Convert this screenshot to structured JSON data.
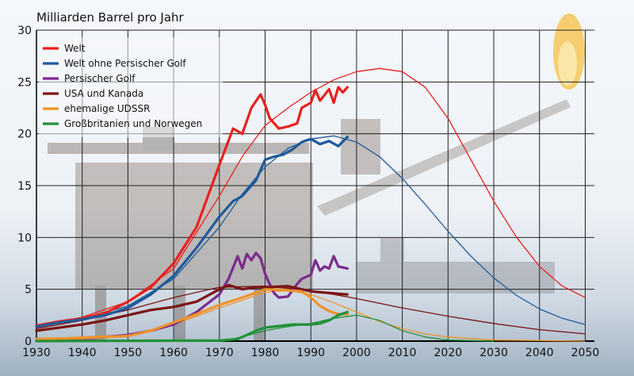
{
  "chart_data": {
    "type": "line",
    "title": "Milliarden Barrel pro Jahr",
    "xlabel": "",
    "ylabel": "",
    "xlim": [
      1930,
      2052
    ],
    "ylim": [
      0,
      30
    ],
    "x_ticks": [
      "1930",
      "1940",
      "1950",
      "1960",
      "1970",
      "1980",
      "1990",
      "2000",
      "2010",
      "2020",
      "2030",
      "2040",
      "2050"
    ],
    "y_ticks": [
      "0",
      "5",
      "10",
      "15",
      "20",
      "25",
      "30"
    ],
    "grid": true,
    "legend_position": "top-left",
    "series": [
      {
        "name": "Welt",
        "color": "#e8201c",
        "actual": [
          [
            1930,
            1.5
          ],
          [
            1935,
            1.9
          ],
          [
            1940,
            2.2
          ],
          [
            1945,
            2.7
          ],
          [
            1950,
            3.8
          ],
          [
            1955,
            5.2
          ],
          [
            1960,
            7.5
          ],
          [
            1965,
            11.0
          ],
          [
            1970,
            17.0
          ],
          [
            1973,
            20.5
          ],
          [
            1975,
            20.0
          ],
          [
            1977,
            22.5
          ],
          [
            1979,
            23.8
          ],
          [
            1980,
            22.8
          ],
          [
            1981,
            21.5
          ],
          [
            1983,
            20.5
          ],
          [
            1985,
            20.7
          ],
          [
            1987,
            21.0
          ],
          [
            1988,
            22.5
          ],
          [
            1990,
            23.0
          ],
          [
            1991,
            24.2
          ],
          [
            1992,
            23.2
          ],
          [
            1994,
            24.3
          ],
          [
            1995,
            23.0
          ],
          [
            1996,
            24.5
          ],
          [
            1997,
            24.0
          ],
          [
            1998,
            24.5
          ]
        ],
        "model": [
          [
            1930,
            1.4
          ],
          [
            1940,
            2.3
          ],
          [
            1950,
            3.8
          ],
          [
            1960,
            7.0
          ],
          [
            1970,
            14.0
          ],
          [
            1975,
            17.8
          ],
          [
            1980,
            20.8
          ],
          [
            1985,
            22.5
          ],
          [
            1990,
            24.0
          ],
          [
            1995,
            25.2
          ],
          [
            2000,
            26.0
          ],
          [
            2005,
            26.3
          ],
          [
            2010,
            26.0
          ],
          [
            2015,
            24.5
          ],
          [
            2020,
            21.5
          ],
          [
            2025,
            17.5
          ],
          [
            2030,
            13.5
          ],
          [
            2035,
            10.0
          ],
          [
            2040,
            7.2
          ],
          [
            2045,
            5.3
          ],
          [
            2050,
            4.2
          ]
        ]
      },
      {
        "name": "Welt ohne Persischer Golf",
        "color": "#1f5a9a",
        "actual": [
          [
            1930,
            1.4
          ],
          [
            1935,
            1.8
          ],
          [
            1940,
            2.1
          ],
          [
            1945,
            2.5
          ],
          [
            1950,
            3.2
          ],
          [
            1955,
            4.5
          ],
          [
            1960,
            6.3
          ],
          [
            1965,
            9.0
          ],
          [
            1970,
            12.0
          ],
          [
            1973,
            13.5
          ],
          [
            1975,
            14.0
          ],
          [
            1978,
            15.5
          ],
          [
            1980,
            17.5
          ],
          [
            1982,
            17.8
          ],
          [
            1984,
            18.0
          ],
          [
            1986,
            18.5
          ],
          [
            1988,
            19.2
          ],
          [
            1990,
            19.5
          ],
          [
            1992,
            19.0
          ],
          [
            1994,
            19.3
          ],
          [
            1996,
            18.8
          ],
          [
            1998,
            19.7
          ]
        ],
        "model": [
          [
            1930,
            1.3
          ],
          [
            1940,
            2.2
          ],
          [
            1950,
            3.4
          ],
          [
            1960,
            6.0
          ],
          [
            1970,
            11.0
          ],
          [
            1975,
            14.2
          ],
          [
            1980,
            16.8
          ],
          [
            1985,
            18.6
          ],
          [
            1990,
            19.5
          ],
          [
            1995,
            19.8
          ],
          [
            2000,
            19.2
          ],
          [
            2005,
            17.8
          ],
          [
            2010,
            15.7
          ],
          [
            2015,
            13.2
          ],
          [
            2020,
            10.6
          ],
          [
            2025,
            8.2
          ],
          [
            2030,
            6.1
          ],
          [
            2035,
            4.4
          ],
          [
            2040,
            3.1
          ],
          [
            2045,
            2.2
          ],
          [
            2050,
            1.6
          ]
        ]
      },
      {
        "name": "Persischer Golf",
        "color": "#7b2a8e",
        "actual": [
          [
            1930,
            0.1
          ],
          [
            1940,
            0.2
          ],
          [
            1950,
            0.6
          ],
          [
            1955,
            1.0
          ],
          [
            1960,
            1.6
          ],
          [
            1965,
            2.8
          ],
          [
            1970,
            4.5
          ],
          [
            1972,
            6.0
          ],
          [
            1974,
            8.2
          ],
          [
            1975,
            7.0
          ],
          [
            1976,
            8.4
          ],
          [
            1977,
            7.8
          ],
          [
            1978,
            8.5
          ],
          [
            1979,
            8.0
          ],
          [
            1980,
            6.5
          ],
          [
            1981,
            5.5
          ],
          [
            1982,
            4.6
          ],
          [
            1983,
            4.2
          ],
          [
            1985,
            4.3
          ],
          [
            1987,
            5.5
          ],
          [
            1988,
            6.0
          ],
          [
            1990,
            6.4
          ],
          [
            1991,
            7.8
          ],
          [
            1992,
            6.8
          ],
          [
            1993,
            7.2
          ],
          [
            1994,
            7.0
          ],
          [
            1995,
            8.2
          ],
          [
            1996,
            7.2
          ],
          [
            1998,
            7.0
          ]
        ]
      },
      {
        "name": "USA und Kanada",
        "color": "#7a1414",
        "actual": [
          [
            1930,
            1.0
          ],
          [
            1935,
            1.3
          ],
          [
            1940,
            1.6
          ],
          [
            1945,
            2.0
          ],
          [
            1950,
            2.5
          ],
          [
            1955,
            3.0
          ],
          [
            1960,
            3.3
          ],
          [
            1965,
            3.8
          ],
          [
            1970,
            5.0
          ],
          [
            1972,
            5.4
          ],
          [
            1975,
            5.0
          ],
          [
            1978,
            5.2
          ],
          [
            1980,
            5.2
          ],
          [
            1985,
            5.3
          ],
          [
            1990,
            4.8
          ],
          [
            1995,
            4.6
          ],
          [
            1998,
            4.5
          ]
        ],
        "model": [
          [
            1930,
            1.2
          ],
          [
            1940,
            2.0
          ],
          [
            1950,
            3.0
          ],
          [
            1960,
            4.2
          ],
          [
            1970,
            5.2
          ],
          [
            1980,
            5.3
          ],
          [
            1990,
            4.9
          ],
          [
            2000,
            4.1
          ],
          [
            2010,
            3.2
          ],
          [
            2020,
            2.4
          ],
          [
            2030,
            1.7
          ],
          [
            2040,
            1.1
          ],
          [
            2050,
            0.7
          ]
        ]
      },
      {
        "name": "ehemalige UDSSR",
        "color": "#f0922a",
        "actual": [
          [
            1930,
            0.2
          ],
          [
            1940,
            0.3
          ],
          [
            1950,
            0.5
          ],
          [
            1955,
            1.0
          ],
          [
            1960,
            1.8
          ],
          [
            1965,
            2.6
          ],
          [
            1970,
            3.5
          ],
          [
            1975,
            4.2
          ],
          [
            1980,
            5.0
          ],
          [
            1985,
            4.9
          ],
          [
            1988,
            4.8
          ],
          [
            1990,
            4.2
          ],
          [
            1992,
            3.4
          ],
          [
            1994,
            2.9
          ],
          [
            1996,
            2.6
          ],
          [
            1998,
            2.6
          ]
        ],
        "model": [
          [
            1930,
            0.2
          ],
          [
            1950,
            0.6
          ],
          [
            1960,
            1.6
          ],
          [
            1970,
            3.2
          ],
          [
            1980,
            4.7
          ],
          [
            1985,
            4.9
          ],
          [
            1990,
            4.5
          ],
          [
            1995,
            3.7
          ],
          [
            2000,
            2.8
          ],
          [
            2005,
            1.9
          ],
          [
            2010,
            1.2
          ],
          [
            2015,
            0.7
          ],
          [
            2020,
            0.4
          ],
          [
            2030,
            0.1
          ],
          [
            2050,
            0.0
          ]
        ]
      },
      {
        "name": "Großbritanien und Norwegen",
        "color": "#23913a",
        "actual": [
          [
            1930,
            0.0
          ],
          [
            1970,
            0.05
          ],
          [
            1974,
            0.2
          ],
          [
            1976,
            0.6
          ],
          [
            1978,
            1.0
          ],
          [
            1980,
            1.3
          ],
          [
            1984,
            1.5
          ],
          [
            1986,
            1.6
          ],
          [
            1990,
            1.6
          ],
          [
            1992,
            1.7
          ],
          [
            1994,
            2.0
          ],
          [
            1996,
            2.5
          ],
          [
            1998,
            2.8
          ]
        ],
        "model": [
          [
            1970,
            0.0
          ],
          [
            1975,
            0.4
          ],
          [
            1980,
            1.0
          ],
          [
            1985,
            1.4
          ],
          [
            1990,
            1.7
          ],
          [
            1995,
            2.2
          ],
          [
            2000,
            2.5
          ],
          [
            2005,
            2.0
          ],
          [
            2010,
            1.0
          ],
          [
            2015,
            0.4
          ],
          [
            2020,
            0.1
          ],
          [
            2030,
            0.0
          ]
        ]
      }
    ]
  }
}
